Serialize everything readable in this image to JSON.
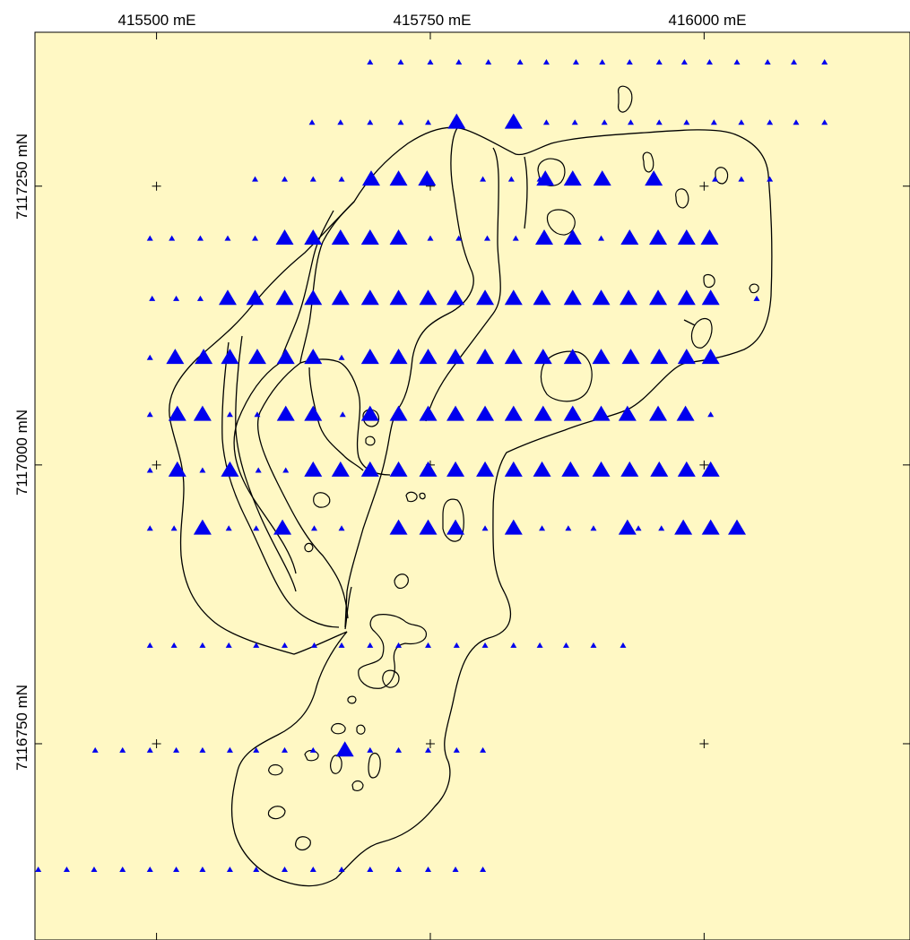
{
  "map": {
    "background_color": "#fff8c4",
    "marker_color": "#0000ee",
    "outline_color": "#000000",
    "easting_labels": [
      "415500 mE",
      "415750 mE",
      "416000 mE"
    ],
    "northing_labels": [
      "7117250 mN",
      "7117000 mN",
      "7116750 mN"
    ]
  },
  "chart_data": {
    "type": "scatter",
    "x_unit": "mE",
    "y_unit": "mN",
    "x_ticks": [
      415500,
      415750,
      416000
    ],
    "y_ticks": [
      7117250,
      7117000,
      7116750
    ],
    "xlim": [
      415389,
      416188
    ],
    "ylim": [
      7116574,
      7117388
    ],
    "marker": "triangle",
    "size_classes": [
      "small",
      "large"
    ],
    "lines": [
      {
        "northing": 7117361,
        "small_eastings": [
          415695,
          415723,
          415750,
          415776,
          415803,
          415832,
          415856,
          415883,
          415907,
          415932,
          415959,
          415982,
          416005,
          416030,
          416058,
          416082,
          416110
        ],
        "large_eastings": []
      },
      {
        "northing": 7117307,
        "small_eastings": [
          415642,
          415668,
          415695,
          415723,
          415748,
          415829,
          415856,
          415882,
          415909,
          415933,
          415959,
          415984,
          416009,
          416034,
          416060,
          416084,
          416110
        ],
        "large_eastings": [
          415774,
          415826
        ]
      },
      {
        "northing": 7117256,
        "small_eastings": [
          415590,
          415617,
          415643,
          415669,
          415798,
          415824,
          415850,
          416010,
          416034,
          416060
        ],
        "large_eastings": [
          415696,
          415721,
          415747,
          415855,
          415880,
          415907,
          415954
        ]
      },
      {
        "northing": 7117203,
        "small_eastings": [
          415494,
          415514,
          415540,
          415565,
          415590,
          415750,
          415776,
          415802,
          415828,
          415906
        ],
        "large_eastings": [
          415617,
          415643,
          415668,
          415695,
          415721,
          415854,
          415880,
          415932,
          415958,
          415984,
          416005
        ]
      },
      {
        "northing": 7117149,
        "small_eastings": [
          415496,
          415518,
          415540,
          416048
        ],
        "large_eastings": [
          415565,
          415590,
          415617,
          415643,
          415668,
          415695,
          415721,
          415748,
          415773,
          415800,
          415826,
          415852,
          415880,
          415906,
          415931,
          415958,
          415984,
          416006
        ]
      },
      {
        "northing": 7117096,
        "small_eastings": [
          415494,
          415616,
          415669
        ],
        "large_eastings": [
          415517,
          415543,
          415567,
          415592,
          415618,
          415643,
          415695,
          415721,
          415748,
          415773,
          415800,
          415826,
          415853,
          415880,
          415906,
          415933,
          415959,
          415984,
          416006
        ]
      },
      {
        "northing": 7117045,
        "small_eastings": [
          415494,
          415567,
          415592,
          415670,
          416006
        ],
        "large_eastings": [
          415519,
          415542,
          415618,
          415643,
          415695,
          415721,
          415748,
          415773,
          415800,
          415826,
          415853,
          415880,
          415906,
          415930,
          415958,
          415983
        ]
      },
      {
        "northing": 7116995,
        "small_eastings": [
          415494,
          415542,
          415593,
          415618,
          415670
        ],
        "large_eastings": [
          415519,
          415567,
          415643,
          415668,
          415695,
          415721,
          415748,
          415773,
          415800,
          415826,
          415852,
          415878,
          415906,
          415932,
          415959,
          415984,
          416006
        ]
      },
      {
        "northing": 7116943,
        "small_eastings": [
          415494,
          415516,
          415566,
          415591,
          415617,
          415644,
          415669,
          415773,
          415800,
          415826,
          415852,
          415876,
          415899,
          415940,
          415961
        ],
        "large_eastings": [
          415542,
          415615,
          415721,
          415748,
          415773,
          415826,
          415930,
          415981,
          416006,
          416030
        ]
      },
      {
        "northing": 7116838,
        "small_eastings": [
          415494,
          415516,
          415542,
          415566,
          415591,
          415617,
          415644,
          415669,
          415695,
          415721,
          415748,
          415774,
          415800,
          415826,
          415850,
          415874,
          415899,
          415926
        ],
        "large_eastings": []
      },
      {
        "northing": 7116744,
        "small_eastings": [
          415444,
          415469,
          415494,
          415518,
          415542,
          415567,
          415591,
          415617,
          415643,
          415695,
          415721,
          415748,
          415774,
          415798
        ],
        "large_eastings": [
          415672
        ]
      },
      {
        "northing": 7116637,
        "small_eastings": [
          415392,
          415418,
          415443,
          415469,
          415494,
          415518,
          415542,
          415567,
          415591,
          415617,
          415643,
          415669,
          415695,
          415721,
          415748,
          415773,
          415798
        ],
        "large_eastings": []
      }
    ]
  }
}
